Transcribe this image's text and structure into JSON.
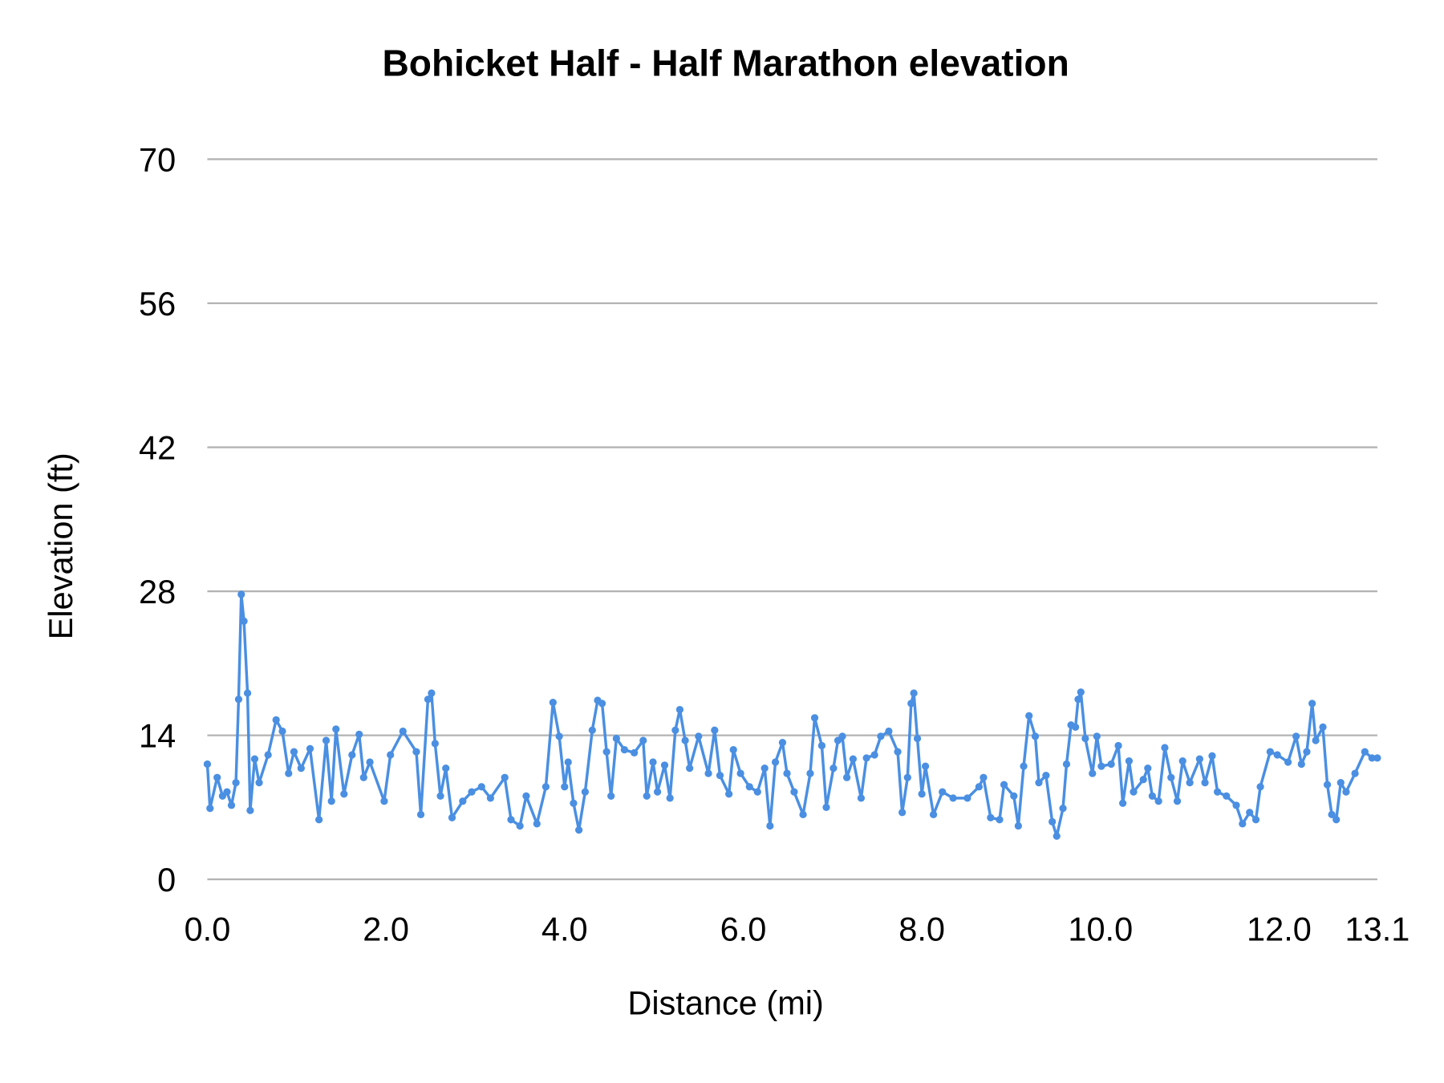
{
  "chart_data": {
    "type": "line",
    "title": "Bohicket Half - Half Marathon elevation",
    "xlabel": "Distance (mi)",
    "ylabel": "Elevation (ft)",
    "xlim": [
      0,
      13.1
    ],
    "ylim": [
      0,
      70
    ],
    "x_ticks": [
      "0.0",
      "2.0",
      "4.0",
      "6.0",
      "8.0",
      "10.0",
      "12.0",
      "13.1"
    ],
    "x_tick_values": [
      0,
      2,
      4,
      6,
      8,
      10,
      12,
      13.1
    ],
    "y_ticks": [
      "0",
      "14",
      "28",
      "42",
      "56",
      "70"
    ],
    "y_tick_values": [
      0,
      14,
      28,
      42,
      56,
      70
    ],
    "grid": "horizontal",
    "legend": "none",
    "markers": true,
    "line_color": "#4a8fe2",
    "series": [
      {
        "points": [
          [
            0.0,
            11.2
          ],
          [
            0.03,
            6.9
          ],
          [
            0.11,
            9.9
          ],
          [
            0.17,
            8.1
          ],
          [
            0.22,
            8.5
          ],
          [
            0.27,
            7.2
          ],
          [
            0.32,
            9.4
          ],
          [
            0.35,
            17.5
          ],
          [
            0.38,
            27.7
          ],
          [
            0.41,
            25.1
          ],
          [
            0.45,
            18.1
          ],
          [
            0.48,
            6.7
          ],
          [
            0.53,
            11.7
          ],
          [
            0.58,
            9.4
          ],
          [
            0.68,
            12.1
          ],
          [
            0.77,
            15.5
          ],
          [
            0.84,
            14.4
          ],
          [
            0.91,
            10.3
          ],
          [
            0.97,
            12.4
          ],
          [
            1.05,
            10.8
          ],
          [
            1.15,
            12.7
          ],
          [
            1.25,
            5.8
          ],
          [
            1.33,
            13.5
          ],
          [
            1.39,
            7.6
          ],
          [
            1.44,
            14.6
          ],
          [
            1.53,
            8.3
          ],
          [
            1.62,
            12.1
          ],
          [
            1.7,
            14.1
          ],
          [
            1.75,
            9.9
          ],
          [
            1.82,
            11.4
          ],
          [
            1.98,
            7.6
          ],
          [
            2.05,
            12.1
          ],
          [
            2.19,
            14.4
          ],
          [
            2.34,
            12.4
          ],
          [
            2.39,
            6.3
          ],
          [
            2.47,
            17.5
          ],
          [
            2.51,
            18.1
          ],
          [
            2.55,
            13.2
          ],
          [
            2.61,
            8.1
          ],
          [
            2.67,
            10.8
          ],
          [
            2.74,
            6.0
          ],
          [
            2.86,
            7.6
          ],
          [
            2.96,
            8.5
          ],
          [
            3.07,
            9.0
          ],
          [
            3.17,
            7.9
          ],
          [
            3.33,
            9.9
          ],
          [
            3.4,
            5.8
          ],
          [
            3.5,
            5.2
          ],
          [
            3.57,
            8.1
          ],
          [
            3.69,
            5.4
          ],
          [
            3.79,
            9.0
          ],
          [
            3.87,
            17.2
          ],
          [
            3.94,
            13.9
          ],
          [
            4.0,
            9.0
          ],
          [
            4.04,
            11.4
          ],
          [
            4.1,
            7.4
          ],
          [
            4.16,
            4.8
          ],
          [
            4.23,
            8.5
          ],
          [
            4.31,
            14.5
          ],
          [
            4.37,
            17.4
          ],
          [
            4.42,
            17.1
          ],
          [
            4.47,
            12.4
          ],
          [
            4.52,
            8.1
          ],
          [
            4.58,
            13.7
          ],
          [
            4.67,
            12.6
          ],
          [
            4.78,
            12.3
          ],
          [
            4.88,
            13.5
          ],
          [
            4.92,
            8.1
          ],
          [
            4.99,
            11.4
          ],
          [
            5.04,
            8.5
          ],
          [
            5.12,
            11.1
          ],
          [
            5.18,
            7.9
          ],
          [
            5.24,
            14.5
          ],
          [
            5.29,
            16.5
          ],
          [
            5.35,
            13.5
          ],
          [
            5.4,
            10.8
          ],
          [
            5.5,
            13.9
          ],
          [
            5.61,
            10.3
          ],
          [
            5.68,
            14.5
          ],
          [
            5.74,
            10.1
          ],
          [
            5.84,
            8.3
          ],
          [
            5.89,
            12.6
          ],
          [
            5.97,
            10.3
          ],
          [
            6.07,
            9.0
          ],
          [
            6.16,
            8.5
          ],
          [
            6.24,
            10.8
          ],
          [
            6.3,
            5.2
          ],
          [
            6.36,
            11.4
          ],
          [
            6.44,
            13.3
          ],
          [
            6.49,
            10.3
          ],
          [
            6.57,
            8.5
          ],
          [
            6.67,
            6.3
          ],
          [
            6.75,
            10.3
          ],
          [
            6.8,
            15.7
          ],
          [
            6.88,
            13.0
          ],
          [
            6.93,
            7.0
          ],
          [
            7.01,
            10.8
          ],
          [
            7.06,
            13.5
          ],
          [
            7.11,
            13.9
          ],
          [
            7.16,
            9.9
          ],
          [
            7.23,
            11.7
          ],
          [
            7.32,
            7.9
          ],
          [
            7.38,
            11.8
          ],
          [
            7.47,
            12.1
          ],
          [
            7.54,
            13.9
          ],
          [
            7.63,
            14.4
          ],
          [
            7.73,
            12.4
          ],
          [
            7.78,
            6.5
          ],
          [
            7.84,
            9.9
          ],
          [
            7.88,
            17.1
          ],
          [
            7.91,
            18.1
          ],
          [
            7.95,
            13.7
          ],
          [
            8.0,
            8.3
          ],
          [
            8.04,
            11.0
          ],
          [
            8.13,
            6.3
          ],
          [
            8.23,
            8.5
          ],
          [
            8.35,
            7.9
          ],
          [
            8.51,
            7.9
          ],
          [
            8.64,
            9.0
          ],
          [
            8.69,
            9.9
          ],
          [
            8.77,
            6.0
          ],
          [
            8.87,
            5.8
          ],
          [
            8.92,
            9.2
          ],
          [
            9.03,
            8.1
          ],
          [
            9.08,
            5.2
          ],
          [
            9.14,
            11.0
          ],
          [
            9.2,
            15.9
          ],
          [
            9.27,
            13.9
          ],
          [
            9.31,
            9.4
          ],
          [
            9.39,
            10.1
          ],
          [
            9.46,
            5.6
          ],
          [
            9.51,
            4.2
          ],
          [
            9.58,
            6.9
          ],
          [
            9.62,
            11.2
          ],
          [
            9.67,
            15.0
          ],
          [
            9.72,
            14.8
          ],
          [
            9.75,
            17.5
          ],
          [
            9.78,
            18.2
          ],
          [
            9.83,
            13.7
          ],
          [
            9.91,
            10.3
          ],
          [
            9.96,
            13.9
          ],
          [
            10.01,
            11.0
          ],
          [
            10.12,
            11.2
          ],
          [
            10.2,
            13.0
          ],
          [
            10.25,
            7.4
          ],
          [
            10.32,
            11.5
          ],
          [
            10.37,
            8.5
          ],
          [
            10.48,
            9.7
          ],
          [
            10.53,
            10.8
          ],
          [
            10.58,
            8.1
          ],
          [
            10.65,
            7.6
          ],
          [
            10.72,
            12.8
          ],
          [
            10.79,
            9.9
          ],
          [
            10.86,
            7.6
          ],
          [
            10.92,
            11.5
          ],
          [
            11.0,
            9.4
          ],
          [
            11.11,
            11.7
          ],
          [
            11.17,
            9.4
          ],
          [
            11.25,
            12.0
          ],
          [
            11.31,
            8.5
          ],
          [
            11.41,
            8.1
          ],
          [
            11.52,
            7.2
          ],
          [
            11.59,
            5.4
          ],
          [
            11.67,
            6.5
          ],
          [
            11.74,
            5.8
          ],
          [
            11.79,
            9.0
          ],
          [
            11.9,
            12.4
          ],
          [
            11.98,
            12.1
          ],
          [
            12.1,
            11.4
          ],
          [
            12.19,
            13.9
          ],
          [
            12.25,
            11.2
          ],
          [
            12.31,
            12.4
          ],
          [
            12.37,
            17.1
          ],
          [
            12.41,
            13.5
          ],
          [
            12.49,
            14.8
          ],
          [
            12.54,
            9.2
          ],
          [
            12.59,
            6.3
          ],
          [
            12.64,
            5.8
          ],
          [
            12.69,
            9.4
          ],
          [
            12.75,
            8.5
          ],
          [
            12.85,
            10.3
          ],
          [
            12.96,
            12.4
          ],
          [
            13.04,
            11.8
          ],
          [
            13.1,
            11.8
          ]
        ]
      }
    ]
  }
}
